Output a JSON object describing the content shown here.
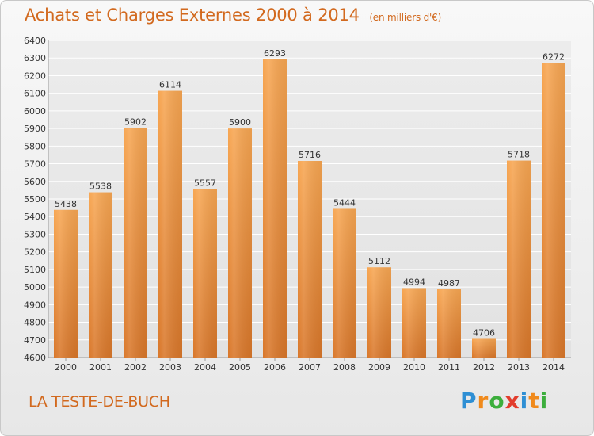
{
  "header": {
    "title": "Achats et Charges Externes 2000 à 2014",
    "unit": "(en milliers d'€)"
  },
  "footer": {
    "location": "LA TESTE-DE-BUCH",
    "logo_text": "Proxiti"
  },
  "colors": {
    "accent": "#d2691e",
    "bar_light": "#f6a24d",
    "bar_dark": "#d9782a",
    "logo": [
      "#2e8fd4",
      "#f08a1c",
      "#3cae3c",
      "#e23c2c",
      "#2e8fd4",
      "#f08a1c",
      "#3cae3c"
    ]
  },
  "chart_data": {
    "type": "bar",
    "title": "Achats et Charges Externes 2000 à 2014",
    "subtitle": "(en milliers d'€)",
    "categories": [
      "2000",
      "2001",
      "2002",
      "2003",
      "2004",
      "2005",
      "2006",
      "2007",
      "2008",
      "2009",
      "2010",
      "2011",
      "2012",
      "2013",
      "2014"
    ],
    "values": [
      5438,
      5538,
      5902,
      6114,
      5557,
      5900,
      6293,
      5716,
      5444,
      5112,
      4994,
      4987,
      4706,
      5718,
      6272
    ],
    "ylim": [
      4600,
      6400
    ],
    "yticks": [
      4600,
      4700,
      4800,
      4900,
      5000,
      5100,
      5200,
      5300,
      5400,
      5500,
      5600,
      5700,
      5800,
      5900,
      6000,
      6100,
      6200,
      6300,
      6400
    ],
    "grid": true,
    "data_labels": true
  }
}
